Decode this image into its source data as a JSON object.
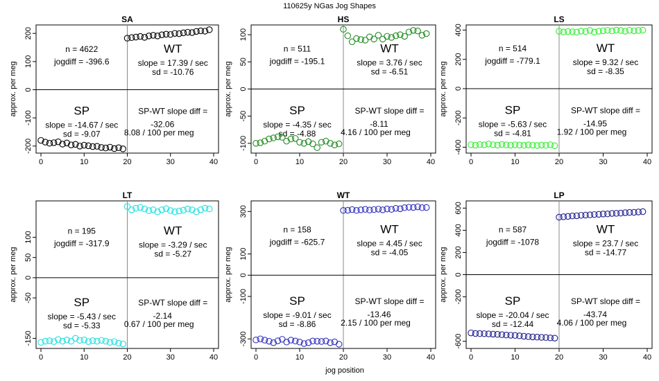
{
  "page": {
    "title": "110625y   NGas Jog Shapes",
    "xlabel": "jog position"
  },
  "chart_data": [
    {
      "type": "scatter",
      "title": "SA",
      "ylabel": "approx. per meg",
      "xlim": [
        0,
        40
      ],
      "ylim": [
        -225,
        230
      ],
      "xticks": [
        "0",
        "10",
        "20",
        "30",
        "40"
      ],
      "yticks": [
        {
          "v": -200,
          "label": "-200"
        },
        {
          "v": -100,
          "label": "-100"
        },
        {
          "v": 0,
          "label": "0"
        },
        {
          "v": 100,
          "label": "100"
        },
        {
          "v": 200,
          "label": "200"
        }
      ],
      "color": "#000000",
      "n_text": "n = 4622",
      "jogdiff_text": "jogdiff = -396.6",
      "wt_label": "WT",
      "wt_slope_text": "slope = 17.39 / sec",
      "wt_sd_text": "sd = -10.76",
      "sp_label": "SP",
      "sp_slope_text": "slope = -14.67 / sec",
      "sp_sd_text": "sd = -9.07",
      "diff_label": "SP-WT slope diff =",
      "diff_value": "-32.06",
      "per_meg_text": "8.08 / 100 per meg",
      "sp_points": {
        "x": [
          0,
          1,
          2,
          3,
          4,
          5,
          6,
          7,
          8,
          9,
          10,
          11,
          12,
          13,
          14,
          15,
          16,
          17,
          18,
          19
        ],
        "y": [
          -180,
          -186,
          -190,
          -188,
          -185,
          -193,
          -189,
          -196,
          -194,
          -200,
          -197,
          -199,
          -202,
          -201,
          -205,
          -207,
          -204,
          -209,
          -206,
          -210
        ]
      },
      "wt_points": {
        "x": [
          20,
          21,
          22,
          23,
          24,
          25,
          26,
          27,
          28,
          29,
          30,
          31,
          32,
          33,
          34,
          35,
          36,
          37,
          38,
          39
        ],
        "y": [
          183,
          185,
          187,
          189,
          186,
          191,
          193,
          191,
          195,
          197,
          196,
          200,
          199,
          202,
          204,
          203,
          207,
          209,
          208,
          213
        ]
      }
    },
    {
      "type": "scatter",
      "title": "HS",
      "ylabel": "approx. per meg",
      "xlim": [
        0,
        40
      ],
      "ylim": [
        -118,
        118
      ],
      "xticks": [
        "0",
        "10",
        "20",
        "30",
        "40"
      ],
      "yticks": [
        {
          "v": -100,
          "label": "-100"
        },
        {
          "v": -50,
          "label": "-50"
        },
        {
          "v": 0,
          "label": "0"
        },
        {
          "v": 50,
          "label": "50"
        },
        {
          "v": 100,
          "label": "100"
        }
      ],
      "color": "#228B22",
      "n_text": "n = 511",
      "jogdiff_text": "jogdiff = -195.1",
      "wt_label": "WT",
      "wt_slope_text": "slope = 3.76 / sec",
      "wt_sd_text": "sd = -6.51",
      "sp_label": "SP",
      "sp_slope_text": "slope = -4.35 / sec",
      "sp_sd_text": "sd = -4.88",
      "diff_label": "SP-WT slope diff =",
      "diff_value": "-8.11",
      "per_meg_text": "4.16 / 100 per meg",
      "sp_points": {
        "x": [
          0,
          1,
          2,
          3,
          4,
          5,
          6,
          7,
          8,
          9,
          10,
          11,
          12,
          13,
          14,
          15,
          16,
          17,
          18,
          19
        ],
        "y": [
          -100,
          -99,
          -96,
          -92,
          -90,
          -88,
          -89,
          -96,
          -92,
          -91,
          -98,
          -100,
          -97,
          -101,
          -108,
          -98,
          -96,
          -100,
          -103,
          -101
        ]
      },
      "wt_points": {
        "x": [
          20,
          21,
          22,
          23,
          24,
          25,
          26,
          27,
          28,
          29,
          30,
          31,
          32,
          33,
          34,
          35,
          36,
          37,
          38,
          39
        ],
        "y": [
          110,
          98,
          87,
          93,
          91,
          90,
          96,
          92,
          99,
          92,
          97,
          95,
          98,
          100,
          97,
          105,
          108,
          107,
          99,
          102
        ]
      }
    },
    {
      "type": "scatter",
      "title": "LS",
      "ylabel": "approx. per meg",
      "xlim": [
        0,
        40
      ],
      "ylim": [
        -440,
        435
      ],
      "xticks": [
        "0",
        "10",
        "20",
        "30",
        "40"
      ],
      "yticks": [
        {
          "v": -400,
          "label": "-400"
        },
        {
          "v": -200,
          "label": "-200"
        },
        {
          "v": 0,
          "label": "0"
        },
        {
          "v": 200,
          "label": "200"
        },
        {
          "v": 400,
          "label": "400"
        }
      ],
      "color": "#33ee33",
      "n_text": "n = 514",
      "jogdiff_text": "jogdiff = -779.1",
      "wt_label": "WT",
      "wt_slope_text": "slope = 9.32 / sec",
      "wt_sd_text": "sd = -8.35",
      "sp_label": "SP",
      "sp_slope_text": "slope = -5.63 / sec",
      "sp_sd_text": "sd = -4.81",
      "diff_label": "SP-WT slope diff =",
      "diff_value": "-14.95",
      "per_meg_text": "1.92 / 100 per meg",
      "sp_points": {
        "x": [
          0,
          1,
          2,
          3,
          4,
          5,
          6,
          7,
          8,
          9,
          10,
          11,
          12,
          13,
          14,
          15,
          16,
          17,
          18,
          19
        ],
        "y": [
          -383,
          -386,
          -382,
          -384,
          -378,
          -383,
          -385,
          -381,
          -384,
          -386,
          -383,
          -385,
          -387,
          -384,
          -386,
          -388,
          -385,
          -387,
          -383,
          -390
        ]
      },
      "wt_points": {
        "x": [
          20,
          21,
          22,
          23,
          24,
          25,
          26,
          27,
          28,
          29,
          30,
          31,
          32,
          33,
          34,
          35,
          36,
          37,
          38,
          39
        ],
        "y": [
          392,
          387,
          390,
          388,
          386,
          393,
          390,
          397,
          386,
          392,
          395,
          398,
          394,
          400,
          397,
          392,
          398,
          395,
          397,
          399
        ]
      }
    },
    {
      "type": "scatter",
      "title": "LT",
      "ylabel": "approx. per meg",
      "xlim": [
        0,
        40
      ],
      "ylim": [
        -175,
        190
      ],
      "xticks": [
        "0",
        "10",
        "20",
        "30",
        "40"
      ],
      "yticks": [
        {
          "v": -150,
          "label": "-150"
        },
        {
          "v": -50,
          "label": "-50"
        },
        {
          "v": 0,
          "label": "0"
        },
        {
          "v": 50,
          "label": "50"
        },
        {
          "v": 100,
          "label": "100"
        }
      ],
      "color": "#22e0e0",
      "n_text": "n = 195",
      "jogdiff_text": "jogdiff = -317.9",
      "wt_label": "WT",
      "wt_slope_text": "slope = -3.29 / sec",
      "wt_sd_text": "sd = -5.27",
      "sp_label": "SP",
      "sp_slope_text": "slope = -5.43 / sec",
      "sp_sd_text": "sd = -5.33",
      "diff_label": "SP-WT slope diff =",
      "diff_value": "-2.14",
      "per_meg_text": "0.67 / 100 per meg",
      "sp_points": {
        "x": [
          0,
          1,
          2,
          3,
          4,
          5,
          6,
          7,
          8,
          9,
          10,
          11,
          12,
          13,
          14,
          15,
          16,
          17,
          18,
          19
        ],
        "y": [
          -160,
          -157,
          -156,
          -158,
          -153,
          -157,
          -154,
          -157,
          -150,
          -155,
          -154,
          -158,
          -156,
          -157,
          -155,
          -157,
          -160,
          -158,
          -162,
          -164
        ]
      },
      "wt_points": {
        "x": [
          20,
          21,
          22,
          23,
          24,
          25,
          26,
          27,
          28,
          29,
          30,
          31,
          32,
          33,
          34,
          35,
          36,
          37,
          38,
          39
        ],
        "y": [
          176,
          168,
          172,
          174,
          170,
          166,
          168,
          163,
          168,
          171,
          166,
          163,
          165,
          167,
          170,
          168,
          163,
          168,
          172,
          170
        ]
      }
    },
    {
      "type": "scatter",
      "title": "WT",
      "ylabel": "approx. per meg",
      "xlim": [
        0,
        40
      ],
      "ylim": [
        -345,
        350
      ],
      "xticks": [
        "0",
        "10",
        "20",
        "30",
        "40"
      ],
      "yticks": [
        {
          "v": -300,
          "label": "-300"
        },
        {
          "v": -100,
          "label": "-100"
        },
        {
          "v": 0,
          "label": "0"
        },
        {
          "v": 100,
          "label": "100"
        },
        {
          "v": 300,
          "label": "300"
        }
      ],
      "color": "#3030c0",
      "n_text": "n = 158",
      "jogdiff_text": "jogdiff = -625.7",
      "wt_label": "WT",
      "wt_slope_text": "slope = 4.45 / sec",
      "wt_sd_text": "sd = -4.05",
      "sp_label": "SP",
      "sp_slope_text": "slope = -9.01 / sec",
      "sp_sd_text": "sd = -8.86",
      "diff_label": "SP-WT slope diff =",
      "diff_value": "-13.46",
      "per_meg_text": "2.15 / 100 per meg",
      "sp_points": {
        "x": [
          0,
          1,
          2,
          3,
          4,
          5,
          6,
          7,
          8,
          9,
          10,
          11,
          12,
          13,
          14,
          15,
          16,
          17,
          18,
          19
        ],
        "y": [
          -305,
          -300,
          -306,
          -311,
          -318,
          -309,
          -302,
          -315,
          -306,
          -310,
          -315,
          -322,
          -318,
          -310,
          -311,
          -312,
          -310,
          -318,
          -314,
          -325
        ]
      },
      "wt_points": {
        "x": [
          20,
          21,
          22,
          23,
          24,
          25,
          26,
          27,
          28,
          29,
          30,
          31,
          32,
          33,
          34,
          35,
          36,
          37,
          38,
          39
        ],
        "y": [
          305,
          306,
          309,
          305,
          308,
          310,
          307,
          309,
          311,
          308,
          312,
          310,
          315,
          313,
          318,
          320,
          319,
          322,
          318,
          319
        ]
      }
    },
    {
      "type": "scatter",
      "title": "LP",
      "ylabel": "approx. per meg",
      "xlim": [
        0,
        40
      ],
      "ylim": [
        -665,
        665
      ],
      "xticks": [
        "0",
        "10",
        "20",
        "30",
        "40"
      ],
      "yticks": [
        {
          "v": -600,
          "label": "-600"
        },
        {
          "v": -200,
          "label": "-200"
        },
        {
          "v": 0,
          "label": "0"
        },
        {
          "v": 200,
          "label": "200"
        },
        {
          "v": 400,
          "label": "400"
        },
        {
          "v": 600,
          "label": "600"
        }
      ],
      "color": "#202090",
      "n_text": "n = 587",
      "jogdiff_text": "jogdiff = -1078",
      "wt_label": "WT",
      "wt_slope_text": "slope = 23.7 / sec",
      "wt_sd_text": "sd = -14.77",
      "sp_label": "SP",
      "sp_slope_text": "slope = -20.04 / sec",
      "sp_sd_text": "sd = -12.44",
      "diff_label": "SP-WT slope diff =",
      "diff_value": "-43.74",
      "per_meg_text": "4.06 / 100 per meg",
      "sp_points": {
        "x": [
          0,
          1,
          2,
          3,
          4,
          5,
          6,
          7,
          8,
          9,
          10,
          11,
          12,
          13,
          14,
          15,
          16,
          17,
          18,
          19
        ],
        "y": [
          -525,
          -530,
          -531,
          -532,
          -534,
          -536,
          -538,
          -541,
          -544,
          -546,
          -548,
          -551,
          -555,
          -558,
          -561,
          -563,
          -565,
          -567,
          -570,
          -572
        ]
      },
      "wt_points": {
        "x": [
          20,
          21,
          22,
          23,
          24,
          25,
          26,
          27,
          28,
          29,
          30,
          31,
          32,
          33,
          34,
          35,
          36,
          37,
          38,
          39
        ],
        "y": [
          518,
          522,
          525,
          529,
          531,
          535,
          537,
          539,
          542,
          544,
          547,
          548,
          552,
          553,
          555,
          559,
          561,
          562,
          565,
          568
        ]
      }
    }
  ]
}
